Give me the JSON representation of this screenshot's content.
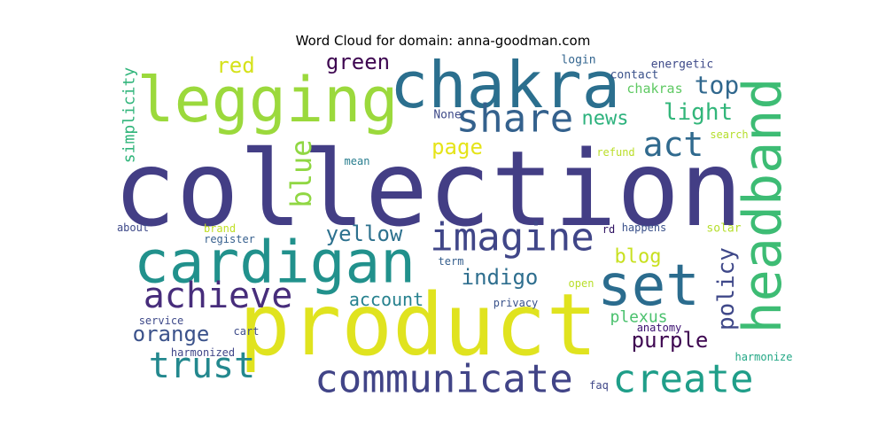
{
  "chart_data": {
    "type": "wordcloud",
    "title": "Word Cloud for domain: anna-goodman.com",
    "words": [
      {
        "text": "collection",
        "color": "#433e85"
      },
      {
        "text": "product",
        "color": "#e0e31f"
      },
      {
        "text": "chakra",
        "color": "#2b6f8e"
      },
      {
        "text": "legging",
        "color": "#9bd93c"
      },
      {
        "text": "headband",
        "color": "#3dbc74"
      },
      {
        "text": "cardigan",
        "color": "#21918c"
      },
      {
        "text": "set",
        "color": "#2b6c8e"
      },
      {
        "text": "share",
        "color": "#34618d"
      },
      {
        "text": "imagine",
        "color": "#404688"
      },
      {
        "text": "communicate",
        "color": "#414487"
      },
      {
        "text": "create",
        "color": "#1f9e89"
      },
      {
        "text": "achieve",
        "color": "#472d7b"
      },
      {
        "text": "trust",
        "color": "#23888e"
      },
      {
        "text": "act",
        "color": "#306a8e"
      },
      {
        "text": "blue",
        "color": "#90d743"
      },
      {
        "text": "top",
        "color": "#31688e"
      },
      {
        "text": "light",
        "color": "#32b67a"
      },
      {
        "text": "policy",
        "color": "#3f4889"
      },
      {
        "text": "green",
        "color": "#3e0751"
      },
      {
        "text": "red",
        "color": "#d5e21a"
      },
      {
        "text": "yellow",
        "color": "#2d718e"
      },
      {
        "text": "indigo",
        "color": "#2e6e8e"
      },
      {
        "text": "orange",
        "color": "#3b528b"
      },
      {
        "text": "purple",
        "color": "#3e0751"
      },
      {
        "text": "page",
        "color": "#e5e419"
      },
      {
        "text": "news",
        "color": "#2db27d"
      },
      {
        "text": "blog",
        "color": "#c8e020"
      },
      {
        "text": "account",
        "color": "#26818e"
      },
      {
        "text": "plexus",
        "color": "#4ac16d"
      },
      {
        "text": "simplicity",
        "color": "#31b57b"
      },
      {
        "text": "chakras",
        "color": "#5ec962"
      },
      {
        "text": "energetic",
        "color": "#3e4a89"
      },
      {
        "text": "contact",
        "color": "#3b528b"
      },
      {
        "text": "login",
        "color": "#32648e"
      },
      {
        "text": "None",
        "color": "#3e4a89"
      },
      {
        "text": "search",
        "color": "#b5de2b"
      },
      {
        "text": "refund",
        "color": "#bade28"
      },
      {
        "text": "mean",
        "color": "#287d8e"
      },
      {
        "text": "about",
        "color": "#3e4989"
      },
      {
        "text": "brand",
        "color": "#c0df25"
      },
      {
        "text": "register",
        "color": "#355f8d"
      },
      {
        "text": "rd",
        "color": "#2c0f5f"
      },
      {
        "text": "happens",
        "color": "#3b528b"
      },
      {
        "text": "solar",
        "color": "#b5de2b"
      },
      {
        "text": "term",
        "color": "#355e8d"
      },
      {
        "text": "open",
        "color": "#b8de29"
      },
      {
        "text": "privacy",
        "color": "#3a538b"
      },
      {
        "text": "service",
        "color": "#3e4989"
      },
      {
        "text": "cart",
        "color": "#3e4c8a"
      },
      {
        "text": "anatomy",
        "color": "#3b0f70"
      },
      {
        "text": "harmonized",
        "color": "#404588"
      },
      {
        "text": "harmonize",
        "color": "#22a785"
      },
      {
        "text": "faq",
        "color": "#3f4788"
      }
    ]
  }
}
